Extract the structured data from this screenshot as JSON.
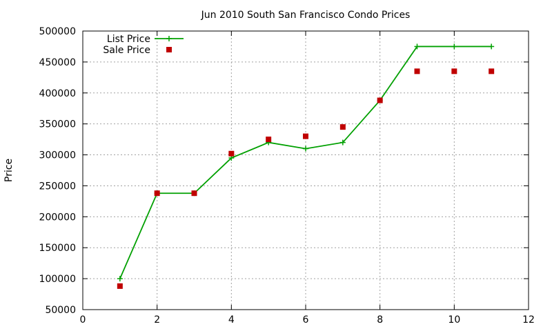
{
  "chart_data": {
    "type": "line",
    "title": "Jun 2010 South San Francisco Condo Prices",
    "xlabel": "",
    "ylabel": "Price",
    "xlim": [
      0,
      12
    ],
    "ylim": [
      50000,
      500000
    ],
    "xticks": [
      0,
      2,
      4,
      6,
      8,
      10,
      12
    ],
    "yticks": [
      50000,
      100000,
      150000,
      200000,
      250000,
      300000,
      350000,
      400000,
      450000,
      500000
    ],
    "grid": true,
    "legend_position": "top-left",
    "series": [
      {
        "name": "List Price",
        "style": "line-with-plus-markers",
        "color": "#00a000",
        "points": [
          [
            1,
            100000
          ],
          [
            2,
            238000
          ],
          [
            3,
            238000
          ],
          [
            4,
            295000
          ],
          [
            5,
            320000
          ],
          [
            6,
            310000
          ],
          [
            7,
            320000
          ],
          [
            8,
            388000
          ],
          [
            9,
            475000
          ],
          [
            10,
            475000
          ],
          [
            11,
            475000
          ]
        ]
      },
      {
        "name": "Sale Price",
        "style": "square-markers",
        "color": "#c00000",
        "points": [
          [
            1,
            88000
          ],
          [
            2,
            238000
          ],
          [
            3,
            238000
          ],
          [
            4,
            302000
          ],
          [
            5,
            325000
          ],
          [
            6,
            330000
          ],
          [
            7,
            345000
          ],
          [
            8,
            388000
          ],
          [
            9,
            435000
          ],
          [
            10,
            435000
          ],
          [
            11,
            435000
          ]
        ]
      }
    ]
  }
}
